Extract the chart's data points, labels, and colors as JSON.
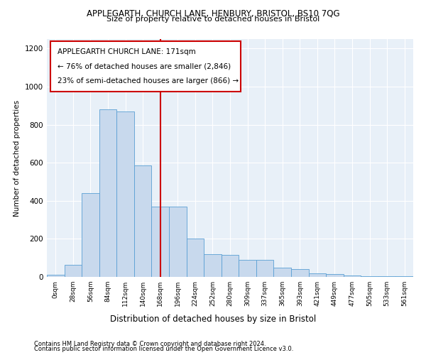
{
  "title1": "APPLEGARTH, CHURCH LANE, HENBURY, BRISTOL, BS10 7QG",
  "title2": "Size of property relative to detached houses in Bristol",
  "xlabel": "Distribution of detached houses by size in Bristol",
  "ylabel": "Number of detached properties",
  "footer1": "Contains HM Land Registry data © Crown copyright and database right 2024.",
  "footer2": "Contains public sector information licensed under the Open Government Licence v3.0.",
  "annotation_line1": "APPLEGARTH CHURCH LANE: 171sqm",
  "annotation_line2": "← 76% of detached houses are smaller (2,846)",
  "annotation_line3": "23% of semi-detached houses are larger (866) →",
  "bar_color": "#c8d9ed",
  "bar_edge_color": "#5a9fd4",
  "background_color": "#e8f0f8",
  "vline_color": "#cc0000",
  "vline_x": 6,
  "annotation_box_color": "#ffffff",
  "annotation_box_edge": "#cc0000",
  "categories": [
    "0sqm",
    "28sqm",
    "56sqm",
    "84sqm",
    "112sqm",
    "140sqm",
    "168sqm",
    "196sqm",
    "224sqm",
    "252sqm",
    "280sqm",
    "309sqm",
    "337sqm",
    "365sqm",
    "393sqm",
    "421sqm",
    "449sqm",
    "477sqm",
    "505sqm",
    "533sqm",
    "561sqm"
  ],
  "values": [
    10,
    62,
    440,
    880,
    870,
    585,
    370,
    370,
    200,
    120,
    115,
    88,
    88,
    47,
    40,
    20,
    14,
    8,
    4,
    2,
    2
  ],
  "ylim": [
    0,
    1250
  ],
  "yticks": [
    0,
    200,
    400,
    600,
    800,
    1000,
    1200
  ]
}
